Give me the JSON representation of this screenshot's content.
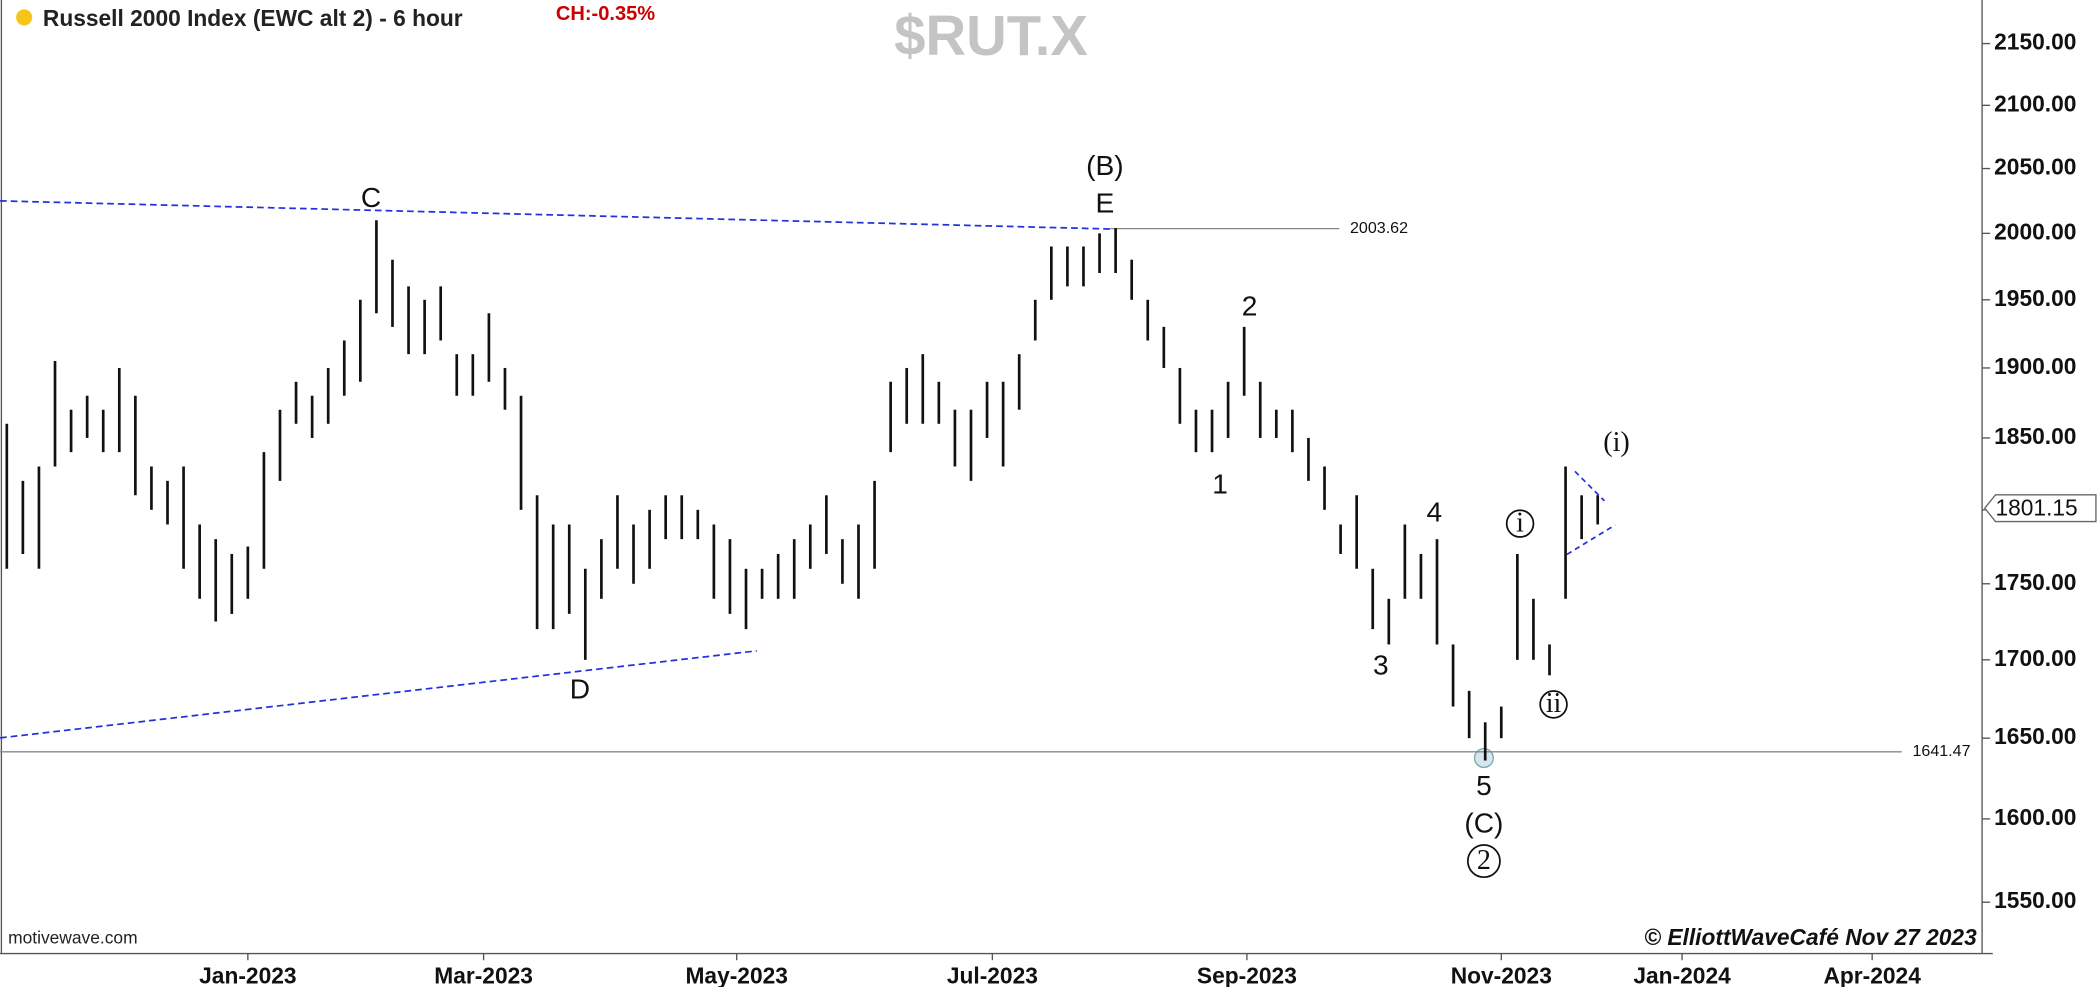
{
  "chart_data": {
    "type": "ohlc",
    "title": "Russell 2000 Index (EWC alt 2) - 6 hour",
    "change": "CH:-0.35%",
    "symbol": "$RUT.X",
    "source": "motivewave.com",
    "credit": "© ElliottWaveCafé Nov 27 2023",
    "log_scale": true,
    "color": "#111111",
    "high": [
      1860,
      1820,
      1830,
      1905,
      1870,
      1880,
      1870,
      1900,
      1880,
      1830,
      1820,
      1830,
      1790,
      1780,
      1770,
      1775,
      1840,
      1870,
      1890,
      1880,
      1900,
      1920,
      1950,
      2010,
      1980,
      1960,
      1950,
      1960,
      1910,
      1910,
      1940,
      1900,
      1880,
      1810,
      1790,
      1790,
      1760,
      1780,
      1810,
      1790,
      1800,
      1810,
      1810,
      1800,
      1790,
      1780,
      1760,
      1760,
      1770,
      1780,
      1790,
      1810,
      1780,
      1790,
      1820,
      1890,
      1900,
      1910,
      1890,
      1870,
      1870,
      1890,
      1890,
      1910,
      1950,
      1990,
      1990,
      1990,
      2000,
      2004,
      1980,
      1950,
      1930,
      1900,
      1870,
      1870,
      1890,
      1930,
      1890,
      1870,
      1870,
      1850,
      1830,
      1790,
      1810,
      1760,
      1740,
      1790,
      1770,
      1780,
      1710,
      1680,
      1660,
      1670,
      1770,
      1740,
      1710,
      1830,
      1810,
      1810
    ],
    "low": [
      1760,
      1770,
      1760,
      1830,
      1840,
      1850,
      1840,
      1840,
      1810,
      1800,
      1790,
      1760,
      1740,
      1725,
      1730,
      1740,
      1760,
      1820,
      1860,
      1850,
      1860,
      1880,
      1890,
      1940,
      1930,
      1910,
      1910,
      1920,
      1880,
      1880,
      1890,
      1870,
      1800,
      1720,
      1720,
      1730,
      1700,
      1740,
      1760,
      1750,
      1760,
      1780,
      1780,
      1780,
      1740,
      1730,
      1720,
      1740,
      1740,
      1740,
      1760,
      1770,
      1750,
      1740,
      1760,
      1840,
      1860,
      1860,
      1860,
      1830,
      1820,
      1850,
      1830,
      1870,
      1920,
      1950,
      1960,
      1960,
      1970,
      1970,
      1950,
      1920,
      1900,
      1860,
      1840,
      1840,
      1850,
      1880,
      1850,
      1850,
      1840,
      1820,
      1800,
      1770,
      1760,
      1720,
      1710,
      1740,
      1740,
      1710,
      1670,
      1650,
      1636,
      1650,
      1700,
      1700,
      1690,
      1740,
      1780,
      1790
    ],
    "ylim": [
      1520,
      2186
    ],
    "yticks": [
      {
        "value": 1550,
        "label": "1550.00"
      },
      {
        "value": 1600,
        "label": "1600.00"
      },
      {
        "value": 1650,
        "label": "1650.00"
      },
      {
        "value": 1700,
        "label": "1700.00"
      },
      {
        "value": 1750,
        "label": "1750.00"
      },
      {
        "value": 1800,
        "label": "1800.00"
      },
      {
        "value": 1850,
        "label": "1850.00"
      },
      {
        "value": 1900,
        "label": "1900.00"
      },
      {
        "value": 1950,
        "label": "1950.00"
      },
      {
        "value": 2000,
        "label": "2000.00"
      },
      {
        "value": 2050,
        "label": "2050.00"
      },
      {
        "value": 2100,
        "label": "2100.00"
      },
      {
        "value": 2150,
        "label": "2150.00"
      }
    ],
    "xlim": [
      -0.42,
      122.92
    ],
    "xticks": [
      {
        "value": 15,
        "label": "Jan-2023"
      },
      {
        "value": 29.67,
        "label": "Mar-2023"
      },
      {
        "value": 45.42,
        "label": "May-2023"
      },
      {
        "value": 61.33,
        "label": "Jul-2023"
      },
      {
        "value": 77.17,
        "label": "Sep-2023"
      },
      {
        "value": 93,
        "label": "Nov-2023"
      },
      {
        "value": 104.25,
        "label": "Jan-2024"
      },
      {
        "value": 116.08,
        "label": "Apr-2024"
      }
    ],
    "levels": [
      2003.62,
      1641.47
    ],
    "last_price": 1801.15,
    "annotations": [
      "C",
      "D",
      "(B)",
      "E",
      "1",
      "2",
      "3",
      "4",
      "5",
      "(C)",
      "2",
      "i",
      "ii",
      "(i)"
    ]
  }
}
